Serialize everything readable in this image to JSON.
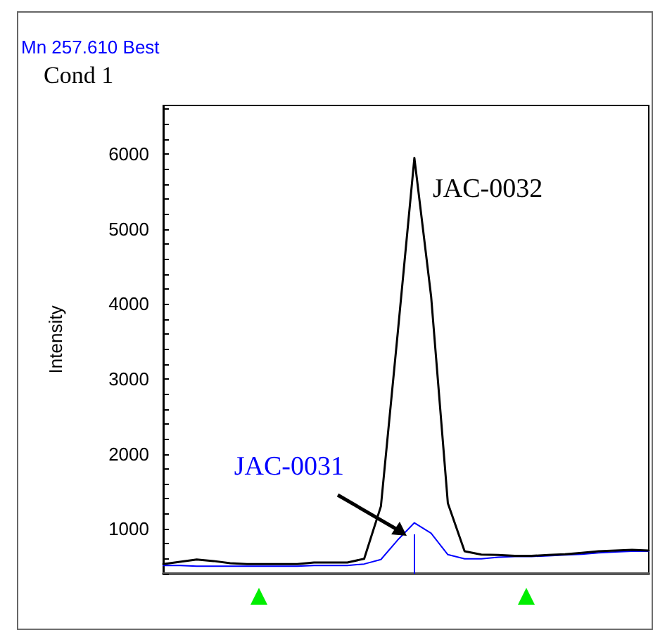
{
  "chart_data": {
    "type": "line",
    "title": "Mn 257.610 Best",
    "subtitle": "Cond 1",
    "ylabel": "Intensity",
    "categories": [
      null,
      null,
      null,
      null,
      null,
      null,
      null,
      null,
      null,
      null,
      null,
      null,
      null,
      null,
      null,
      null,
      null,
      null,
      null,
      null,
      null,
      null,
      null,
      null,
      null,
      null,
      null,
      null,
      null,
      null
    ],
    "series": [
      {
        "name": "JAC-0032",
        "color": "#000000",
        "values": [
          530,
          560,
          590,
          570,
          540,
          530,
          530,
          530,
          530,
          550,
          550,
          550,
          600,
          1300,
          3600,
          5950,
          4100,
          1340,
          700,
          655,
          650,
          640,
          640,
          650,
          660,
          680,
          700,
          710,
          720,
          710
        ]
      },
      {
        "name": "JAC-0031",
        "color": "#0000ff",
        "values": [
          510,
          510,
          500,
          500,
          500,
          500,
          500,
          500,
          500,
          510,
          510,
          510,
          530,
          590,
          850,
          1080,
          940,
          655,
          600,
          600,
          620,
          630,
          630,
          640,
          650,
          660,
          680,
          690,
          700,
          700
        ]
      }
    ],
    "ylim": [
      400,
      6650
    ],
    "yticks": [
      {
        "value": 400,
        "label": null
      },
      {
        "value": 600,
        "label": null
      },
      {
        "value": 800,
        "label": null
      },
      1000,
      {
        "value": 1200,
        "label": null
      },
      {
        "value": 1400,
        "label": null
      },
      {
        "value": 1600,
        "label": null
      },
      {
        "value": 1800,
        "label": null
      },
      2000,
      {
        "value": 2200,
        "label": null
      },
      {
        "value": 2400,
        "label": null
      },
      {
        "value": 2600,
        "label": null
      },
      {
        "value": 2800,
        "label": null
      },
      3000,
      {
        "value": 3200,
        "label": null
      },
      {
        "value": 3400,
        "label": null
      },
      {
        "value": 3600,
        "label": null
      },
      {
        "value": 3800,
        "label": null
      },
      4000,
      {
        "value": 4200,
        "label": null
      },
      {
        "value": 4400,
        "label": null
      },
      {
        "value": 4600,
        "label": null
      },
      {
        "value": 4800,
        "label": null
      },
      5000,
      {
        "value": 5200,
        "label": null
      },
      {
        "value": 5400,
        "label": null
      },
      {
        "value": 5600,
        "label": null
      },
      {
        "value": 5800,
        "label": null
      },
      6000,
      {
        "value": 6200,
        "label": null
      },
      {
        "value": 6400,
        "label": null
      },
      {
        "value": 6600,
        "label": null
      }
    ],
    "grid": false,
    "legend": false,
    "marker": "none",
    "line_style": "solid"
  }
}
